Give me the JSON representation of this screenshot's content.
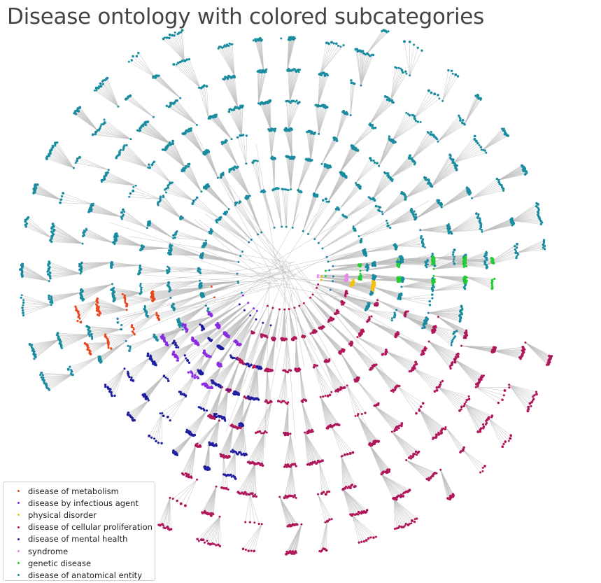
{
  "title": "Disease ontology with colored subcategories",
  "legend": {
    "items": [
      {
        "label": "disease of metabolism",
        "color": "#e8471e"
      },
      {
        "label": "disease by infectious agent",
        "color": "#8a2be2"
      },
      {
        "label": "physical disorder",
        "color": "#f4c20d"
      },
      {
        "label": "disease of cellular proliferation",
        "color": "#b0175a"
      },
      {
        "label": "disease of mental health",
        "color": "#1f1fa0"
      },
      {
        "label": "syndrome",
        "color": "#ee82ee"
      },
      {
        "label": "genetic disease",
        "color": "#22cc33"
      },
      {
        "label": "disease of anatomical entity",
        "color": "#1a8ca0"
      }
    ]
  },
  "edge_color": "#bdbdbd"
}
